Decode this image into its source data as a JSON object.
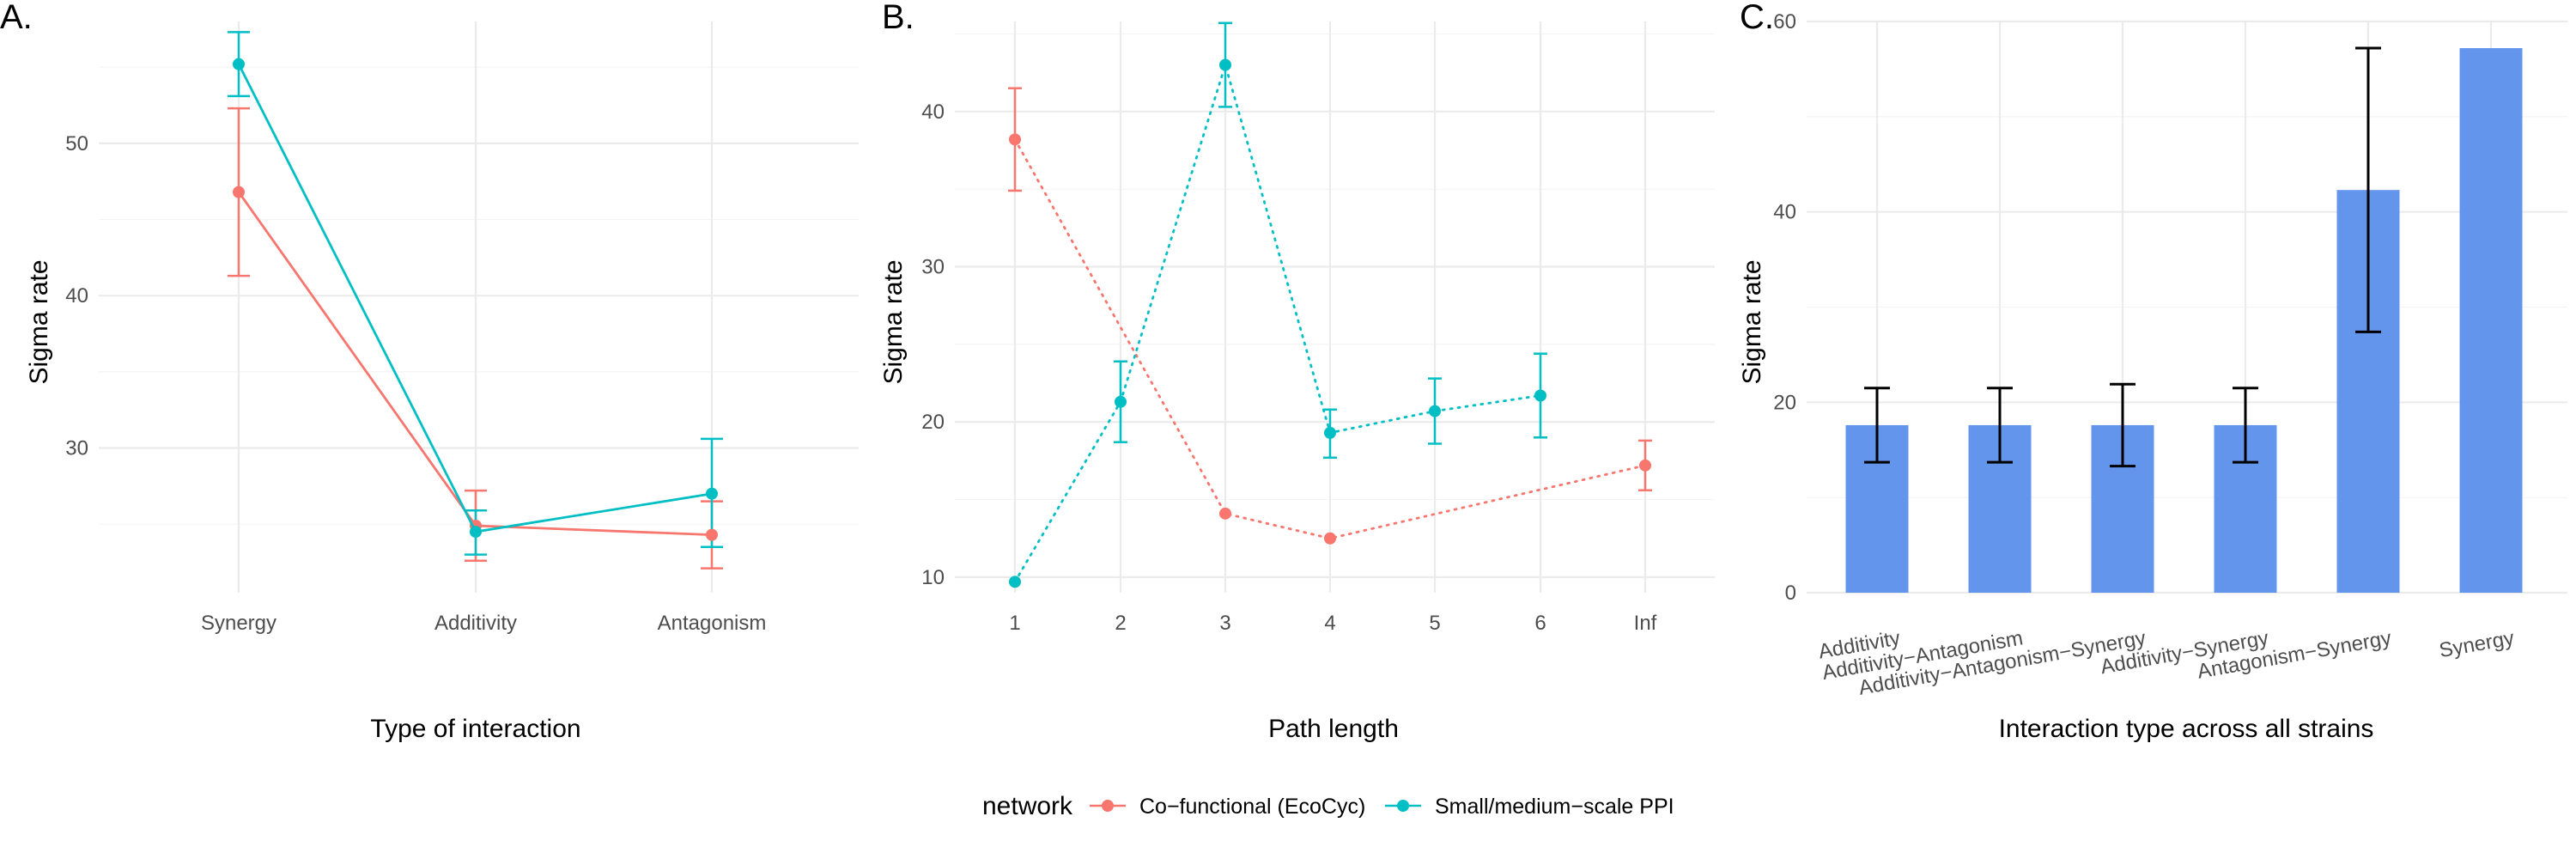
{
  "colors": {
    "co_functional": "#F8766D",
    "ppi": "#00BFC4",
    "bar": "#6495ED",
    "errorbar_c": "#000000"
  },
  "legend": {
    "title": "network",
    "items": [
      {
        "label": "Co−functional (EcoCyc)",
        "color_key": "co_functional"
      },
      {
        "label": "Small/medium−scale PPI",
        "color_key": "ppi"
      }
    ]
  },
  "chart_data": [
    {
      "panel": "A.",
      "type": "line",
      "xlabel": "Type of interaction",
      "ylabel": "Sigma rate",
      "categories": [
        "Synergy",
        "Additivity",
        "Antagonism"
      ],
      "yticks": [
        30,
        40,
        50
      ],
      "ylim": [
        20.5,
        58
      ],
      "line_style": "solid",
      "series": [
        {
          "name": "Co−functional (EcoCyc)",
          "color_key": "co_functional",
          "values": [
            46.8,
            24.9,
            24.3
          ],
          "lower": [
            41.3,
            22.6,
            22.1
          ],
          "upper": [
            52.3,
            27.2,
            26.5
          ]
        },
        {
          "name": "Small/medium−scale PPI",
          "color_key": "ppi",
          "values": [
            55.2,
            24.5,
            27.0
          ],
          "lower": [
            53.1,
            23.0,
            23.5
          ],
          "upper": [
            57.3,
            25.9,
            30.6
          ]
        }
      ]
    },
    {
      "panel": "B.",
      "type": "line",
      "xlabel": "Path length",
      "ylabel": "Sigma rate",
      "categories": [
        "1",
        "2",
        "3",
        "4",
        "5",
        "6",
        "Inf"
      ],
      "yticks": [
        10,
        20,
        30,
        40
      ],
      "ylim": [
        9,
        45.8
      ],
      "line_style": "dotted",
      "series": [
        {
          "name": "Co−functional (EcoCyc)",
          "color_key": "co_functional",
          "points": [
            {
              "x": "1",
              "y": 38.2,
              "lower": 34.9,
              "upper": 41.5
            },
            {
              "x": "3",
              "y": 14.1
            },
            {
              "x": "4",
              "y": 12.5
            },
            {
              "x": "Inf",
              "y": 17.2,
              "lower": 15.6,
              "upper": 18.8
            }
          ]
        },
        {
          "name": "Small/medium−scale PPI",
          "color_key": "ppi",
          "points": [
            {
              "x": "1",
              "y": 9.7
            },
            {
              "x": "2",
              "y": 21.3,
              "lower": 18.7,
              "upper": 23.9
            },
            {
              "x": "3",
              "y": 43.0,
              "lower": 40.3,
              "upper": 45.7
            },
            {
              "x": "4",
              "y": 19.3,
              "lower": 17.7,
              "upper": 20.8
            },
            {
              "x": "5",
              "y": 20.7,
              "lower": 18.6,
              "upper": 22.8
            },
            {
              "x": "6",
              "y": 21.7,
              "lower": 19.0,
              "upper": 24.4
            }
          ]
        }
      ]
    },
    {
      "panel": "C.",
      "type": "bar",
      "xlabel": "Interaction type across all strains",
      "ylabel": "Sigma rate",
      "categories": [
        "Additivity",
        "Additivity−Antagonism",
        "Additivity−Antagonism−Synergy",
        "Additivity−Synergy",
        "Antagonism−Synergy",
        "Synergy"
      ],
      "values": [
        17.6,
        17.6,
        17.6,
        17.6,
        42.3,
        57.2
      ],
      "lower": [
        13.7,
        13.7,
        13.3,
        13.7,
        27.4,
        null
      ],
      "upper": [
        21.5,
        21.5,
        21.9,
        21.5,
        57.2,
        null
      ],
      "yticks": [
        0,
        20,
        40,
        60
      ],
      "ylim": [
        0,
        60
      ]
    }
  ]
}
